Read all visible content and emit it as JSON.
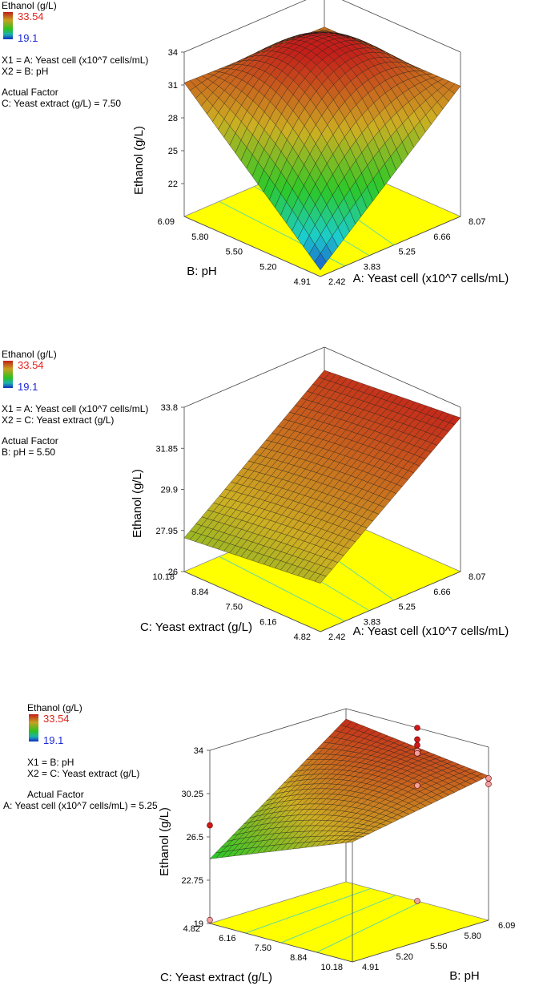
{
  "chart_data": [
    {
      "type": "surface3d",
      "zlabel": "Ethanol (g/L)",
      "xlabel": "A: Yeast cell (x10^7 cells/mL)",
      "ylabel": "B: pH",
      "x_ticks": [
        "2.42",
        "3.83",
        "5.25",
        "6.66",
        "8.07"
      ],
      "y_ticks": [
        "4.91",
        "5.20",
        "5.50",
        "5.80",
        "6.09"
      ],
      "z_ticks": [
        "22",
        "25",
        "28",
        "31",
        "34"
      ],
      "zlim": [
        19.0,
        34.0
      ],
      "legend": {
        "title": "Ethanol (g/L)",
        "max": "33.54",
        "min": "19.1",
        "x1": "X1 = A: Yeast cell (x10^7 cells/mL)",
        "x2": "X2 = B: pH",
        "actual_factor_label": "Actual Factor",
        "actual_factor": "C: Yeast extract (g/L) = 7.50"
      },
      "surface_corners": {
        "x_low_y_low": 19.6,
        "x_high_y_low": 30.9,
        "x_low_y_high": 31.2,
        "x_high_y_high": 30.8,
        "x_mid_y_mid": 33.3
      },
      "design_points_z": []
    },
    {
      "type": "surface3d",
      "zlabel": "Ethanol (g/L)",
      "xlabel": "A: Yeast cell (x10^7 cells/mL)",
      "ylabel": "C: Yeast extract (g/L)",
      "x_ticks": [
        "2.42",
        "3.83",
        "5.25",
        "6.66",
        "8.07"
      ],
      "y_ticks": [
        "4.82",
        "6.16",
        "7.50",
        "8.84",
        "10.18"
      ],
      "z_ticks": [
        "26",
        "27.95",
        "29.9",
        "31.85",
        "33.8"
      ],
      "zlim": [
        26.0,
        33.8
      ],
      "legend": {
        "title": "Ethanol (g/L)",
        "max": "33.54",
        "min": "19.1",
        "x1": "X1 = A: Yeast cell (x10^7 cells/mL)",
        "x2": "X2 = C: Yeast extract (g/L)",
        "actual_factor_label": "Actual Factor",
        "actual_factor": "B: pH = 5.50"
      },
      "surface_corners": {
        "x_low_y_low": 28.3,
        "x_high_y_low": 33.3,
        "x_low_y_high": 27.6,
        "x_high_y_high": 32.7,
        "x_mid_y_mid": 30.6
      },
      "design_points_z": []
    },
    {
      "type": "surface3d",
      "zlabel": "Ethanol (g/L)",
      "xlabel": "B: pH",
      "ylabel": "C: Yeast extract (g/L)",
      "x_ticks": [
        "4.91",
        "5.20",
        "5.50",
        "5.80",
        "6.09"
      ],
      "y_ticks": [
        "4.82",
        "6.16",
        "7.50",
        "8.84",
        "10.18"
      ],
      "z_ticks": [
        "19",
        "22.75",
        "26.5",
        "30.25",
        "34"
      ],
      "zlim": [
        19.0,
        34.0
      ],
      "legend": {
        "title": "Ethanol (g/L)",
        "max": "33.54",
        "min": "19.1",
        "x1": "X1 = B: pH",
        "x2": "X2 = C: Yeast extract (g/L)",
        "actual_factor_label": "Actual Factor",
        "actual_factor": "A: Yeast cell (x10^7 cells/mL) = 5.25"
      },
      "surface_corners": {
        "x_low_y_low": 33.1,
        "x_high_y_low": 31.5,
        "x_low_y_high": 24.6,
        "x_high_y_high": 29.4,
        "x_mid_y_mid": 30.8
      },
      "design_points_z": [
        {
          "x_frac": 0.5,
          "y_frac": 0.0,
          "z": 34.0
        },
        {
          "x_frac": 0.5,
          "y_frac": 0.0,
          "z": 33.0
        },
        {
          "x_frac": 0.5,
          "y_frac": 0.0,
          "z": 32.5
        },
        {
          "x_frac": 0.5,
          "y_frac": 0.0,
          "z": 32.0
        },
        {
          "x_frac": 0.5,
          "y_frac": 0.0,
          "z": 31.8
        },
        {
          "x_frac": 0.5,
          "y_frac": 0.0,
          "z": 29.0
        },
        {
          "x_frac": 0.5,
          "y_frac": 0.0,
          "z": 19.0
        },
        {
          "x_frac": 1.0,
          "y_frac": 0.0,
          "z": 31.3
        },
        {
          "x_frac": 1.0,
          "y_frac": 0.0,
          "z": 30.8
        },
        {
          "x_frac": 0.0,
          "y_frac": 1.0,
          "z": 27.5
        },
        {
          "x_frac": 0.0,
          "y_frac": 1.0,
          "z": 19.3
        }
      ]
    }
  ]
}
